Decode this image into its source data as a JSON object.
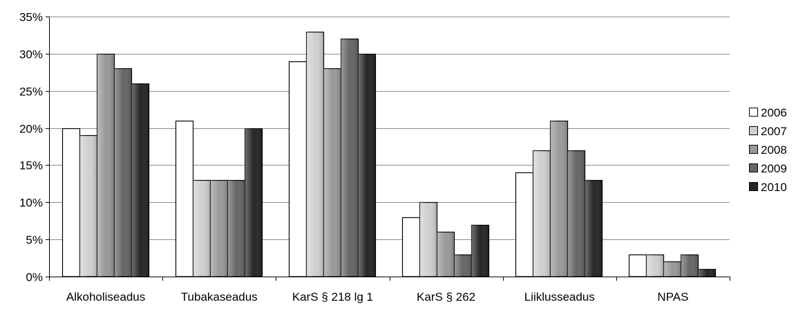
{
  "chart_data": {
    "type": "bar",
    "title": "",
    "xlabel": "",
    "ylabel": "",
    "ylim": [
      0,
      35
    ],
    "y_ticks": [
      0,
      5,
      10,
      15,
      20,
      25,
      30,
      35
    ],
    "y_tick_format": "percent",
    "grid": "horizontal",
    "legend_position": "right",
    "categories": [
      "Alkoholiseadus",
      "Tubakaseadus",
      "KarS § 218 lg 1",
      "KarS § 262",
      "Liiklusseadus",
      "NPAS"
    ],
    "series": [
      {
        "name": "2006",
        "values": [
          20,
          21,
          29,
          8,
          14,
          3
        ],
        "color": "#ffffff"
      },
      {
        "name": "2007",
        "values": [
          19,
          13,
          33,
          10,
          17,
          3
        ],
        "color": "#d0d0d0"
      },
      {
        "name": "2008",
        "values": [
          30,
          13,
          28,
          6,
          21,
          2
        ],
        "color": "#999999"
      },
      {
        "name": "2009",
        "values": [
          28,
          13,
          32,
          3,
          17,
          3
        ],
        "color": "#666666"
      },
      {
        "name": "2010",
        "values": [
          26,
          20,
          30,
          7,
          13,
          1
        ],
        "color": "#262626"
      }
    ]
  }
}
